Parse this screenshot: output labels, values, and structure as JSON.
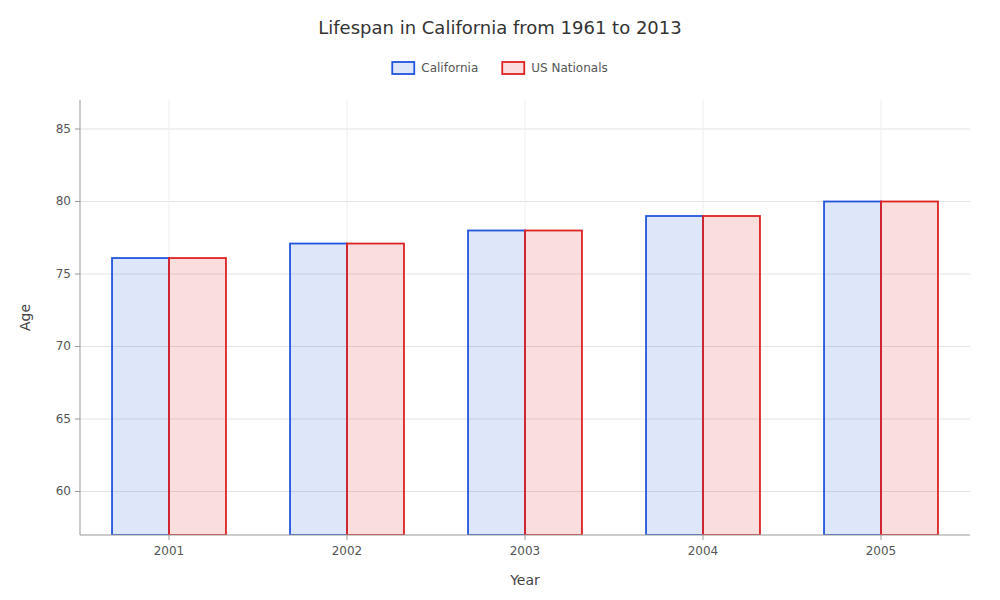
{
  "chart_data": {
    "type": "bar",
    "title": "Lifespan in California from 1961 to 2013",
    "xlabel": "Year",
    "ylabel": "Age",
    "categories": [
      "2001",
      "2002",
      "2003",
      "2004",
      "2005"
    ],
    "series": [
      {
        "name": "California",
        "color": "#2255dd",
        "values": [
          76.1,
          77.1,
          78.0,
          79.0,
          80.0
        ]
      },
      {
        "name": "US Nationals",
        "color": "#dd2222",
        "values": [
          76.1,
          77.1,
          78.0,
          79.0,
          80.0
        ]
      }
    ],
    "ylim": [
      57,
      87
    ],
    "yticks": [
      60,
      65,
      70,
      75,
      80,
      85
    ],
    "grid": true,
    "legend": "top"
  }
}
